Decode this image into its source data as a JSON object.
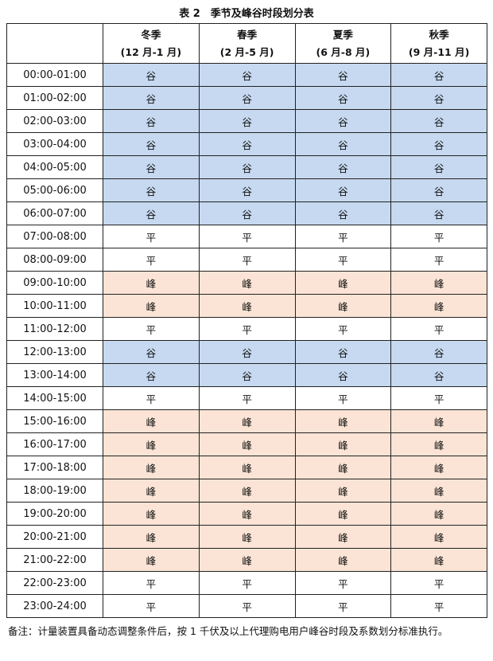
{
  "title": "表 2　季节及峰谷时段划分表",
  "header": {
    "corner": "",
    "seasons": [
      {
        "name": "冬季",
        "months": "(12 月-1 月)"
      },
      {
        "name": "春季",
        "months": "(2 月-5 月)"
      },
      {
        "name": "夏季",
        "months": "(6 月-8 月)"
      },
      {
        "name": "秋季",
        "months": "(9 月-11 月)"
      }
    ]
  },
  "colors": {
    "谷": "#c6d9f0",
    "峰": "#fbe4d5",
    "平": "#ffffff"
  },
  "rows": [
    {
      "time": "00:00-01:00",
      "values": [
        "谷",
        "谷",
        "谷",
        "谷"
      ]
    },
    {
      "time": "01:00-02:00",
      "values": [
        "谷",
        "谷",
        "谷",
        "谷"
      ]
    },
    {
      "time": "02:00-03:00",
      "values": [
        "谷",
        "谷",
        "谷",
        "谷"
      ]
    },
    {
      "time": "03:00-04:00",
      "values": [
        "谷",
        "谷",
        "谷",
        "谷"
      ]
    },
    {
      "time": "04:00-05:00",
      "values": [
        "谷",
        "谷",
        "谷",
        "谷"
      ]
    },
    {
      "time": "05:00-06:00",
      "values": [
        "谷",
        "谷",
        "谷",
        "谷"
      ]
    },
    {
      "time": "06:00-07:00",
      "values": [
        "谷",
        "谷",
        "谷",
        "谷"
      ]
    },
    {
      "time": "07:00-08:00",
      "values": [
        "平",
        "平",
        "平",
        "平"
      ]
    },
    {
      "time": "08:00-09:00",
      "values": [
        "平",
        "平",
        "平",
        "平"
      ]
    },
    {
      "time": "09:00-10:00",
      "values": [
        "峰",
        "峰",
        "峰",
        "峰"
      ]
    },
    {
      "time": "10:00-11:00",
      "values": [
        "峰",
        "峰",
        "峰",
        "峰"
      ]
    },
    {
      "time": "11:00-12:00",
      "values": [
        "平",
        "平",
        "平",
        "平"
      ]
    },
    {
      "time": "12:00-13:00",
      "values": [
        "谷",
        "谷",
        "谷",
        "谷"
      ]
    },
    {
      "time": "13:00-14:00",
      "values": [
        "谷",
        "谷",
        "谷",
        "谷"
      ]
    },
    {
      "time": "14:00-15:00",
      "values": [
        "平",
        "平",
        "平",
        "平"
      ]
    },
    {
      "time": "15:00-16:00",
      "values": [
        "峰",
        "峰",
        "峰",
        "峰"
      ]
    },
    {
      "time": "16:00-17:00",
      "values": [
        "峰",
        "峰",
        "峰",
        "峰"
      ]
    },
    {
      "time": "17:00-18:00",
      "values": [
        "峰",
        "峰",
        "峰",
        "峰"
      ]
    },
    {
      "time": "18:00-19:00",
      "values": [
        "峰",
        "峰",
        "峰",
        "峰"
      ]
    },
    {
      "time": "19:00-20:00",
      "values": [
        "峰",
        "峰",
        "峰",
        "峰"
      ]
    },
    {
      "time": "20:00-21:00",
      "values": [
        "峰",
        "峰",
        "峰",
        "峰"
      ]
    },
    {
      "time": "21:00-22:00",
      "values": [
        "峰",
        "峰",
        "峰",
        "峰"
      ]
    },
    {
      "time": "22:00-23:00",
      "values": [
        "平",
        "平",
        "平",
        "平"
      ]
    },
    {
      "time": "23:00-24:00",
      "values": [
        "平",
        "平",
        "平",
        "平"
      ]
    }
  ],
  "note": "备注：计量装置具备动态调整条件后，按 1 千伏及以上代理购电用户峰谷时段及系数划分标准执行。"
}
